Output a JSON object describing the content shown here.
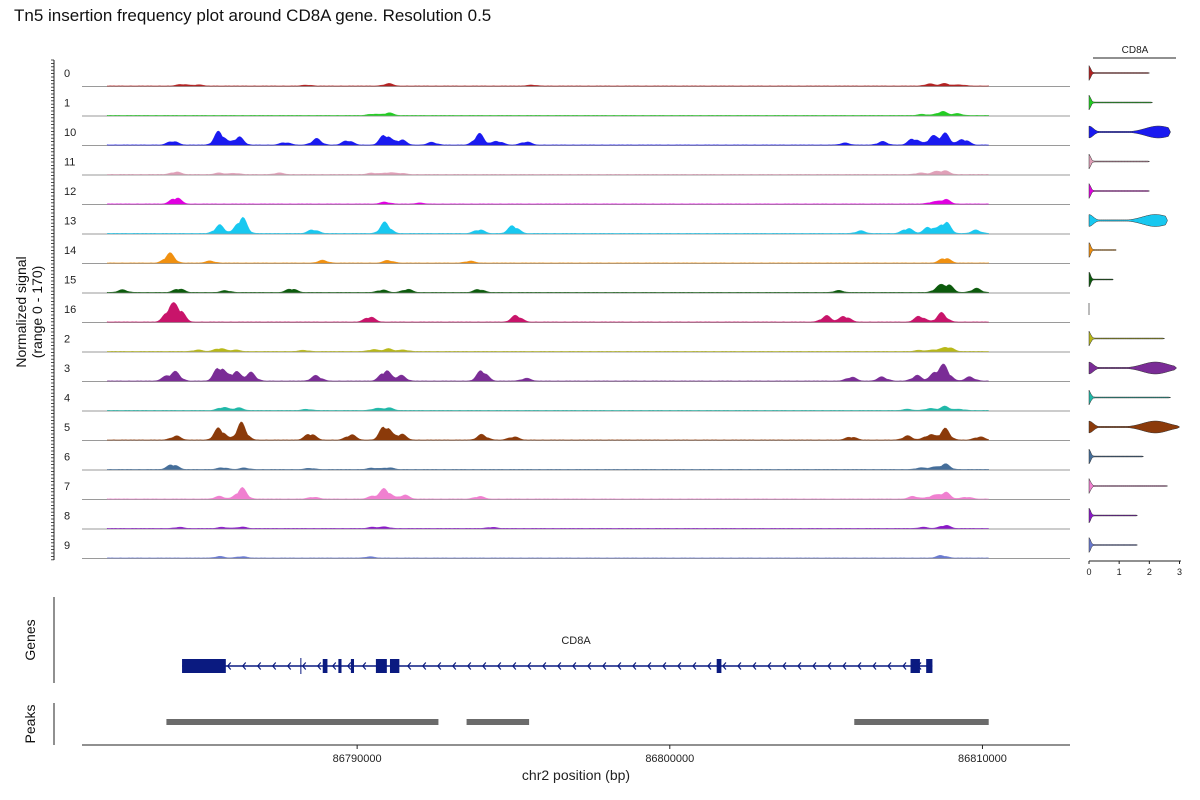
{
  "chart_data": {
    "type": "area",
    "title": "Tn5 insertion frequency plot around CD8A gene. Resolution 0.5",
    "ylabel": [
      "Normalized signal",
      "(range 0 - 170)"
    ],
    "xlabel": "chr2 position (bp)",
    "x_ticks": [
      86790000,
      86800000,
      86810000
    ],
    "x_tick_labels": [
      "86790000",
      "86800000",
      "86810000"
    ],
    "x_range": [
      86781200,
      86812800
    ],
    "y_range": [
      0,
      170
    ],
    "tracks": [
      {
        "cluster": "0",
        "color": "#b22222",
        "peaks": [
          [
            86784400,
            14
          ],
          [
            86784900,
            10
          ],
          [
            86788400,
            8
          ],
          [
            86791000,
            18
          ],
          [
            86795600,
            8
          ],
          [
            86808300,
            16
          ],
          [
            86808800,
            18
          ],
          [
            86809300,
            10
          ]
        ],
        "violin_max": 2.0,
        "violin_peak": 0.1
      },
      {
        "cluster": "1",
        "color": "#22cc22",
        "peaks": [
          [
            86790500,
            12
          ],
          [
            86791000,
            20
          ],
          [
            86808700,
            30
          ],
          [
            86809200,
            14
          ],
          [
            86808100,
            10
          ]
        ],
        "violin_max": 2.1,
        "violin_peak": 0.1
      },
      {
        "cluster": "10",
        "color": "#1a1af0",
        "peaks": [
          [
            86784100,
            30
          ],
          [
            86785600,
            100
          ],
          [
            86786200,
            60
          ],
          [
            86787700,
            20
          ],
          [
            86788700,
            45
          ],
          [
            86789700,
            35
          ],
          [
            86790900,
            80
          ],
          [
            86791400,
            40
          ],
          [
            86792400,
            20
          ],
          [
            86793900,
            80
          ],
          [
            86794500,
            30
          ],
          [
            86795400,
            25
          ],
          [
            86805600,
            15
          ],
          [
            86806800,
            25
          ],
          [
            86807800,
            50
          ],
          [
            86808400,
            60
          ],
          [
            86808800,
            80
          ],
          [
            86809400,
            45
          ]
        ],
        "violin_max": 2.7,
        "violin_peak": 2.3
      },
      {
        "cluster": "11",
        "color": "#e0a0b8",
        "peaks": [
          [
            86784200,
            20
          ],
          [
            86785600,
            12
          ],
          [
            86786100,
            10
          ],
          [
            86787500,
            12
          ],
          [
            86790500,
            12
          ],
          [
            86791000,
            15
          ],
          [
            86791400,
            10
          ],
          [
            86808000,
            12
          ],
          [
            86808500,
            18
          ],
          [
            86808800,
            25
          ]
        ],
        "violin_max": 2.0,
        "violin_peak": 0.1
      },
      {
        "cluster": "12",
        "color": "#e000e0",
        "peaks": [
          [
            86784200,
            50
          ],
          [
            86790900,
            15
          ],
          [
            86792000,
            8
          ],
          [
            86808400,
            15
          ],
          [
            86808800,
            35
          ]
        ],
        "violin_max": 2.0,
        "violin_peak": 0.1
      },
      {
        "cluster": "13",
        "color": "#18c8f0",
        "peaks": [
          [
            86785600,
            60
          ],
          [
            86786300,
            120
          ],
          [
            86788600,
            30
          ],
          [
            86790900,
            80
          ],
          [
            86793900,
            30
          ],
          [
            86795000,
            60
          ],
          [
            86806100,
            20
          ],
          [
            86807600,
            40
          ],
          [
            86808300,
            50
          ],
          [
            86808800,
            90
          ],
          [
            86809800,
            25
          ]
        ],
        "violin_max": 2.6,
        "violin_peak": 2.2
      },
      {
        "cluster": "14",
        "color": "#f09010",
        "peaks": [
          [
            86784000,
            70
          ],
          [
            86785300,
            15
          ],
          [
            86788900,
            20
          ],
          [
            86791000,
            20
          ],
          [
            86793600,
            15
          ],
          [
            86808800,
            40
          ]
        ],
        "violin_max": 0.9,
        "violin_peak": 0.1
      },
      {
        "cluster": "15",
        "color": "#0c5a0c",
        "peaks": [
          [
            86782500,
            20
          ],
          [
            86784300,
            30
          ],
          [
            86785800,
            15
          ],
          [
            86787900,
            30
          ],
          [
            86790800,
            20
          ],
          [
            86791600,
            25
          ],
          [
            86793900,
            25
          ],
          [
            86805400,
            15
          ],
          [
            86808600,
            40
          ],
          [
            86808900,
            55
          ],
          [
            86809800,
            30
          ]
        ],
        "violin_max": 0.8,
        "violin_peak": 0.1
      },
      {
        "cluster": "16",
        "color": "#c8146a",
        "peaks": [
          [
            86784000,
            100
          ],
          [
            86784300,
            100
          ],
          [
            86790400,
            40
          ],
          [
            86795100,
            50
          ],
          [
            86805000,
            45
          ],
          [
            86805600,
            45
          ],
          [
            86808000,
            45
          ],
          [
            86808700,
            65
          ]
        ],
        "violin_max": 0.0,
        "violin_peak": 0.0
      },
      {
        "cluster": "2",
        "color": "#b8b818",
        "peaks": [
          [
            86784900,
            12
          ],
          [
            86785600,
            25
          ],
          [
            86786100,
            12
          ],
          [
            86788300,
            10
          ],
          [
            86790500,
            15
          ],
          [
            86791000,
            20
          ],
          [
            86791500,
            12
          ],
          [
            86808000,
            10
          ],
          [
            86808500,
            15
          ],
          [
            86808900,
            35
          ]
        ],
        "violin_max": 2.5,
        "violin_peak": 0.1
      },
      {
        "cluster": "3",
        "color": "#7a2c96",
        "peaks": [
          [
            86783900,
            30
          ],
          [
            86784200,
            60
          ],
          [
            86785600,
            110
          ],
          [
            86786100,
            70
          ],
          [
            86786600,
            60
          ],
          [
            86788700,
            40
          ],
          [
            86790900,
            80
          ],
          [
            86791400,
            40
          ],
          [
            86794000,
            80
          ],
          [
            86795400,
            20
          ],
          [
            86805800,
            30
          ],
          [
            86806800,
            30
          ],
          [
            86807900,
            40
          ],
          [
            86808500,
            60
          ],
          [
            86808800,
            100
          ],
          [
            86809600,
            30
          ]
        ],
        "violin_max": 2.9,
        "violin_peak": 2.2
      },
      {
        "cluster": "4",
        "color": "#20b8a8",
        "peaks": [
          [
            86785700,
            25
          ],
          [
            86786200,
            20
          ],
          [
            86788400,
            10
          ],
          [
            86790600,
            15
          ],
          [
            86791000,
            20
          ],
          [
            86807600,
            10
          ],
          [
            86808300,
            15
          ],
          [
            86808800,
            30
          ],
          [
            86809300,
            10
          ]
        ],
        "violin_max": 2.7,
        "violin_peak": 0.1
      },
      {
        "cluster": "5",
        "color": "#8b3a0a",
        "peaks": [
          [
            86784200,
            30
          ],
          [
            86785600,
            90
          ],
          [
            86786300,
            120
          ],
          [
            86788500,
            50
          ],
          [
            86789800,
            40
          ],
          [
            86790900,
            110
          ],
          [
            86791400,
            45
          ],
          [
            86794000,
            40
          ],
          [
            86795000,
            25
          ],
          [
            86805800,
            25
          ],
          [
            86807600,
            30
          ],
          [
            86808300,
            40
          ],
          [
            86808800,
            80
          ],
          [
            86809900,
            25
          ]
        ],
        "violin_max": 3.0,
        "violin_peak": 2.2
      },
      {
        "cluster": "6",
        "color": "#456e9a",
        "peaks": [
          [
            86784100,
            40
          ],
          [
            86785700,
            15
          ],
          [
            86786400,
            12
          ],
          [
            86788500,
            10
          ],
          [
            86790500,
            12
          ],
          [
            86791000,
            15
          ],
          [
            86808000,
            12
          ],
          [
            86808400,
            15
          ],
          [
            86808800,
            40
          ]
        ],
        "violin_max": 1.8,
        "violin_peak": 0.1
      },
      {
        "cluster": "7",
        "color": "#f080d0",
        "peaks": [
          [
            86785600,
            20
          ],
          [
            86786300,
            80
          ],
          [
            86788600,
            15
          ],
          [
            86790500,
            20
          ],
          [
            86790900,
            75
          ],
          [
            86791500,
            30
          ],
          [
            86793900,
            20
          ],
          [
            86807800,
            20
          ],
          [
            86808400,
            25
          ],
          [
            86808800,
            50
          ],
          [
            86809500,
            15
          ]
        ],
        "violin_max": 2.6,
        "violin_peak": 0.5
      },
      {
        "cluster": "8",
        "color": "#8a18c8",
        "peaks": [
          [
            86784300,
            10
          ],
          [
            86785700,
            10
          ],
          [
            86786300,
            12
          ],
          [
            86790500,
            10
          ],
          [
            86790900,
            12
          ],
          [
            86794300,
            10
          ],
          [
            86808100,
            10
          ],
          [
            86808800,
            25
          ]
        ],
        "violin_max": 1.6,
        "violin_peak": 0.1
      },
      {
        "cluster": "9",
        "color": "#6a7ad0",
        "peaks": [
          [
            86785600,
            12
          ],
          [
            86786300,
            12
          ],
          [
            86790400,
            10
          ],
          [
            86808700,
            20
          ]
        ],
        "violin_max": 1.6,
        "violin_peak": 0.1
      }
    ],
    "violin_panel": {
      "gene": "CD8A",
      "x_ticks": [
        0,
        1,
        2,
        3
      ],
      "x_tick_labels": [
        "0",
        "1",
        "2",
        "3"
      ],
      "x_range": [
        0,
        3.05
      ]
    },
    "genes_track": {
      "label": "Genes",
      "gene_name": "CD8A",
      "gene_start": 86784400,
      "gene_end": 86808400,
      "strand": "-",
      "exons": [
        [
          86784400,
          86785800
        ],
        [
          86788900,
          86789050
        ],
        [
          86789400,
          86789500
        ],
        [
          86789800,
          86789900
        ],
        [
          86790600,
          86790950
        ],
        [
          86791050,
          86791350
        ],
        [
          86801500,
          86801650
        ],
        [
          86807700,
          86808000
        ],
        [
          86808200,
          86808400
        ]
      ],
      "tss_mark": 86788200
    },
    "peaks_track": {
      "label": "Peaks",
      "regions": [
        [
          86783900,
          86792600
        ],
        [
          86793500,
          86795500
        ],
        [
          86805900,
          86810200
        ]
      ]
    }
  }
}
